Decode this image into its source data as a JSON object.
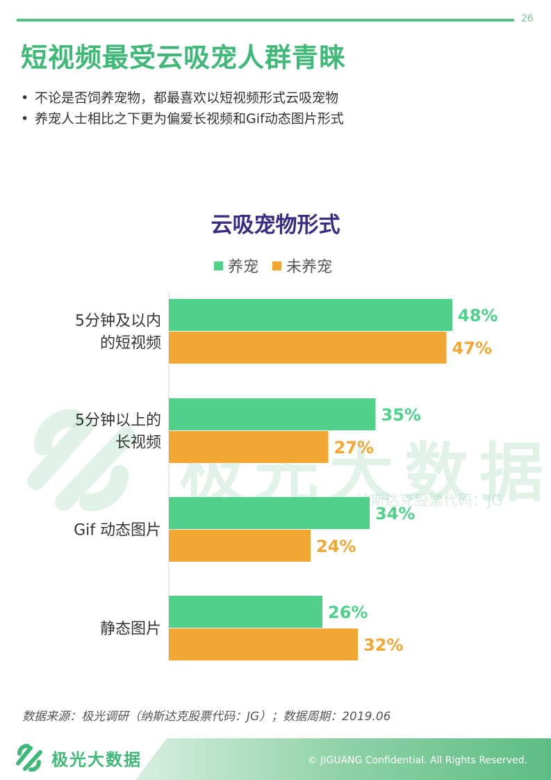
{
  "header": {
    "page_number": "26",
    "title": "短视频最受云吸宠人群青睐",
    "bullets": [
      "不论是否饲养宠物，都最喜欢以短视频形式云吸宠物",
      "养宠人士相比之下更为偏爱长视频和Gif动态图片形式"
    ]
  },
  "watermark": {
    "text": "极光大数据",
    "sub": "纳斯达克股票代码：JG"
  },
  "colors": {
    "pet_owner": "#4fd18a",
    "non_pet_owner": "#f3a733",
    "title_green": "#3fb878",
    "chart_title": "#3a2c84"
  },
  "chart_data": {
    "type": "bar",
    "orientation": "horizontal",
    "title": "云吸宠物形式",
    "legend_position": "top",
    "categories": [
      [
        "5分钟及以内",
        "的短视频"
      ],
      [
        "5分钟以上的",
        "长视频"
      ],
      [
        "Gif 动态图片"
      ],
      [
        "静态图片"
      ]
    ],
    "series": [
      {
        "name": "养宠",
        "values": [
          48,
          35,
          34,
          26
        ],
        "labels": [
          "48%",
          "35%",
          "34%",
          "26%"
        ],
        "color": "#4fd18a"
      },
      {
        "name": "未养宠",
        "values": [
          47,
          27,
          24,
          32
        ],
        "labels": [
          "47%",
          "27%",
          "24%",
          "32%"
        ],
        "color": "#f3a733"
      }
    ],
    "unit": "%",
    "grid": false
  },
  "footer": {
    "source": "数据来源：极光调研（纳斯达克股票代码：JG）；数据周期：2019.06",
    "logo_text": "极光大数据",
    "copyright": "© JIGUANG Confidential. All Rights Reserved."
  }
}
